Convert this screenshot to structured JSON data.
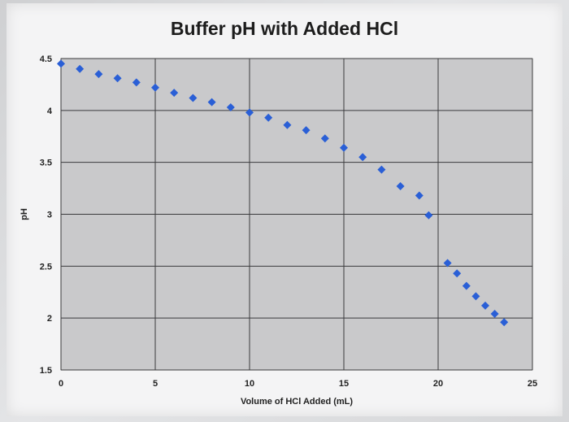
{
  "chart_data": {
    "type": "scatter",
    "title": "Buffer pH with Added HCl",
    "xlabel": "Volume of HCl Added (mL)",
    "ylabel": "pH",
    "xlim": [
      0,
      25
    ],
    "ylim": [
      1.5,
      4.5
    ],
    "x_ticks": [
      "0",
      "5",
      "10",
      "15",
      "20",
      "25"
    ],
    "y_ticks": [
      "1.5",
      "2",
      "2.5",
      "3",
      "3.5",
      "4",
      "4.5"
    ],
    "grid": true,
    "legend": "none",
    "marker_color": "#2a5fd6",
    "plot_bg": "#c9c9cb",
    "series": [
      {
        "x": [
          0,
          1,
          2,
          3,
          4,
          5,
          6,
          7,
          8,
          9,
          10,
          11,
          12,
          13,
          14,
          15,
          16,
          17,
          18,
          19,
          19.5,
          20.5,
          21,
          21.5,
          22,
          22.5,
          23,
          23.5
        ],
        "values": [
          4.45,
          4.4,
          4.35,
          4.31,
          4.27,
          4.22,
          4.17,
          4.12,
          4.08,
          4.03,
          3.98,
          3.93,
          3.86,
          3.81,
          3.73,
          3.64,
          3.55,
          3.43,
          3.27,
          3.18,
          2.99,
          2.53,
          2.43,
          2.31,
          2.21,
          2.12,
          2.04,
          1.96
        ]
      }
    ]
  }
}
